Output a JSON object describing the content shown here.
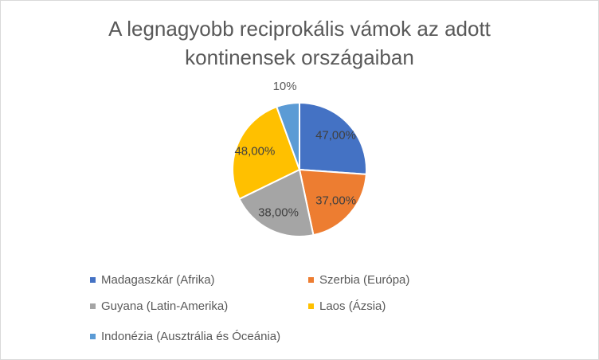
{
  "chart_data": {
    "type": "pie",
    "title_lines": [
      "A legnagyobb reciprokális vámok az adott",
      "kontinensek országaiban"
    ],
    "categories": [
      "Madagaszkár (Afrika)",
      "Szerbia (Európa)",
      "Guyana (Latin-Amerika)",
      "Laos (Ázsia)",
      "Indonézia (Ausztrália és Óceánia)"
    ],
    "values": [
      47,
      37,
      38,
      48,
      10
    ],
    "data_labels": [
      "47,00%",
      "37,00%",
      "38,00%",
      "48,00%",
      "10%"
    ],
    "colors": [
      "#4472c4",
      "#ed7d31",
      "#a5a5a5",
      "#ffc000",
      "#5b9bd5"
    ],
    "start_angle": "12 o'clock",
    "direction": "clockwise",
    "legend_position": "bottom"
  }
}
